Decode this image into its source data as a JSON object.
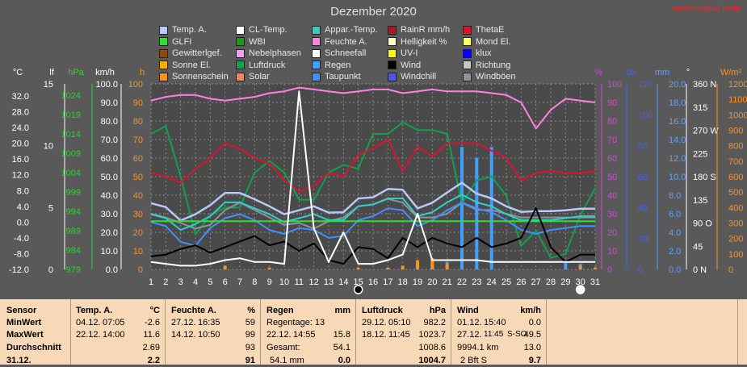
{
  "title": "Dezember 2020",
  "status": "Wetterstation Halle",
  "legend": [
    {
      "label": "Temp. A.",
      "color": "#b8c8f8"
    },
    {
      "label": "CL-Temp.",
      "color": "#ffffff"
    },
    {
      "label": "Appar.-Temp.",
      "color": "#30d0c8"
    },
    {
      "label": "RainR mm/h",
      "color": "#c01020"
    },
    {
      "label": "ThetaE",
      "color": "#e01030"
    },
    {
      "label": "GLFI",
      "color": "#30e030"
    },
    {
      "label": "WBI",
      "color": "#10a010"
    },
    {
      "label": "Feuchte A.",
      "color": "#ff80e0"
    },
    {
      "label": "Helligkeit %",
      "color": "#ffffc0"
    },
    {
      "label": "Mond El.",
      "color": "#ffff60"
    },
    {
      "label": "Gewitterlgef.",
      "color": "#8a4a10"
    },
    {
      "label": "Nebelphasen",
      "color": "#f0a0f0"
    },
    {
      "label": "Schneefall",
      "color": "#ffffff"
    },
    {
      "label": "UV-I",
      "color": "#ffff00"
    },
    {
      "label": "klux",
      "color": "#0000ff"
    },
    {
      "label": "Sonne El.",
      "color": "#f0b000"
    },
    {
      "label": "Luftdruck",
      "color": "#10a050"
    },
    {
      "label": "Regen",
      "color": "#40a0ff"
    },
    {
      "label": "Wind",
      "color": "#000000"
    },
    {
      "label": "Richtung",
      "color": "#c8c8c8"
    },
    {
      "label": "Sonnenschein",
      "color": "#ff9020"
    },
    {
      "label": "Solar",
      "color": "#ff8050"
    },
    {
      "label": "Taupunkt",
      "color": "#4090ff"
    },
    {
      "label": "Windchill",
      "color": "#5050ff"
    },
    {
      "label": "Windböen",
      "color": "#9090a0"
    }
  ],
  "chart_data": {
    "type": "line",
    "title": "Dezember 2020",
    "days": [
      1,
      2,
      3,
      4,
      5,
      6,
      7,
      8,
      9,
      10,
      11,
      12,
      13,
      14,
      15,
      16,
      17,
      18,
      19,
      20,
      21,
      22,
      23,
      24,
      25,
      26,
      27,
      28,
      29,
      30,
      31
    ],
    "axes": {
      "temp": {
        "unit": "°C",
        "ticks": [
          "32.0",
          "28.0",
          "24.0",
          "20.0",
          "16.0",
          "12.0",
          "8.0",
          "4.0",
          "0.0",
          "-4.0",
          "-8.0",
          "-12.0"
        ],
        "range": [
          -12,
          32
        ],
        "color": "#ffffff"
      },
      "index": {
        "unit": "lf",
        "ticks": [
          "15",
          "10",
          "5",
          "0"
        ],
        "range": [
          0,
          15
        ],
        "color": "#ffffff"
      },
      "pressure": {
        "unit": "hPa",
        "ticks": [
          "1024",
          "1019",
          "1014",
          "1009",
          "1004",
          "999",
          "994",
          "989",
          "984",
          "979"
        ],
        "range": [
          979,
          1024
        ],
        "color": "#30d030"
      },
      "wind": {
        "unit": "km/h",
        "ticks": [
          "100.0",
          "90.0",
          "80.0",
          "70.0",
          "60.0",
          "50.0",
          "40.0",
          "30.0",
          "20.0",
          "10.0",
          "0.0"
        ],
        "range": [
          0,
          100
        ],
        "color": "#ffffff"
      },
      "hours": {
        "unit": "h",
        "ticks": [
          "100",
          "90",
          "80",
          "70",
          "60",
          "50",
          "40",
          "30",
          "20",
          "10",
          "0"
        ],
        "range": [
          0,
          100
        ],
        "color": "#ff9020"
      },
      "humidity": {
        "unit": "%",
        "ticks": [
          "100",
          "90",
          "80",
          "70",
          "60",
          "50",
          "40",
          "30",
          "20",
          "10",
          "0"
        ],
        "range": [
          0,
          100
        ],
        "color": "#e040e0"
      },
      "cb": {
        "unit": "cb",
        "ticks": [
          "120",
          "100",
          "80",
          "60",
          "40",
          "20",
          "0"
        ],
        "range": [
          0,
          120
        ],
        "color": "#4060ff"
      },
      "rain": {
        "unit": "mm",
        "ticks": [
          "20.0",
          "18.0",
          "16.0",
          "14.0",
          "12.0",
          "10.0",
          "8.0",
          "6.0",
          "4.0",
          "2.0",
          "0.0"
        ],
        "range": [
          0,
          20
        ],
        "color": "#60a0ff"
      },
      "direction": {
        "unit": "°",
        "ticks": [
          "360 N",
          "315",
          "270 W",
          "225",
          "180 S",
          "135",
          "90 O",
          "45",
          "0 N"
        ],
        "range": [
          0,
          360
        ],
        "color": "#ffffff"
      },
      "solar": {
        "unit": "W/m²",
        "ticks": [
          "1200",
          "1100",
          "1000",
          "900",
          "800",
          "700",
          "600",
          "500",
          "400",
          "300",
          "200",
          "100",
          "0"
        ],
        "range": [
          0,
          1200
        ],
        "color": "#ff9020"
      }
    },
    "moon_phases": [
      {
        "day": 15,
        "phase": "new"
      },
      {
        "day": 30,
        "phase": "full"
      }
    ],
    "series": [
      {
        "name": "Feuchte A.",
        "color": "#ff80e0",
        "axis": "humidity",
        "values": [
          91,
          93,
          94,
          94,
          92,
          91,
          92,
          93,
          95,
          96,
          98,
          97,
          96,
          95,
          96,
          97,
          97,
          95,
          96,
          97,
          96,
          96,
          96,
          95,
          94,
          90,
          76,
          86,
          92,
          91,
          90
        ]
      },
      {
        "name": "Luftdruck",
        "color": "#10a050",
        "axis": "pressure",
        "values": [
          1014,
          1016,
          1003,
          988,
          993,
          995,
          995,
          1004,
          1007,
          1004,
          997,
          997,
          1004,
          1006,
          1005,
          1014,
          1014,
          1017,
          1015,
          1015,
          1014,
          996,
          1002,
          1003,
          998,
          985,
          989,
          982,
          983,
          993,
          1000
        ]
      },
      {
        "name": "ThetaE",
        "color": "#e01030",
        "axis": "hours",
        "values": [
          52,
          50,
          47,
          54,
          60,
          68,
          65,
          60,
          57,
          48,
          42,
          45,
          52,
          50,
          62,
          65,
          70,
          53,
          66,
          61,
          68,
          68,
          68,
          64,
          60,
          48,
          52,
          53,
          52,
          52,
          53
        ]
      },
      {
        "name": "Windböen",
        "color": "#9090a0",
        "axis": "wind",
        "values": [
          30,
          28,
          25,
          22,
          24,
          32,
          36,
          32,
          28,
          24,
          25,
          22,
          26,
          28,
          34,
          35,
          38,
          36,
          28,
          28,
          30,
          36,
          32,
          32,
          30,
          28,
          28,
          28,
          28,
          28,
          28
        ]
      },
      {
        "name": "Temp. A.",
        "color": "#b8c8f8",
        "axis": "temp",
        "values": [
          4.8,
          3.8,
          0.4,
          2.0,
          4.3,
          7.4,
          7.4,
          5.8,
          4.0,
          2.0,
          3.0,
          4.0,
          2.4,
          2.5,
          6.0,
          6.3,
          8.4,
          8.2,
          3.5,
          4.9,
          7.5,
          10.0,
          7.2,
          6.0,
          4.0,
          2.6,
          2.8,
          2.8,
          3.0,
          3.4,
          3.4
        ]
      },
      {
        "name": "Appar.-Temp.",
        "color": "#30d0c8",
        "axis": "temp",
        "values": [
          2.0,
          1.0,
          -2.0,
          -0.5,
          1.5,
          5.0,
          5.0,
          3.5,
          2.0,
          0.0,
          1.0,
          2.0,
          0.5,
          0.5,
          4.0,
          4.5,
          6.0,
          6.0,
          1.5,
          2.5,
          5.0,
          7.0,
          5.0,
          4.0,
          2.0,
          0.5,
          0.5,
          0.5,
          1.0,
          1.5,
          1.5
        ]
      },
      {
        "name": "Taupunkt",
        "color": "#4090ff",
        "axis": "temp",
        "values": [
          0.0,
          -1.0,
          -5.0,
          -6.0,
          -1.5,
          1.0,
          2.0,
          0.5,
          -2.0,
          -3.0,
          -1.5,
          -2.0,
          -4.0,
          -3.5,
          0.5,
          1.5,
          3.5,
          3.0,
          -1.0,
          0.5,
          3.0,
          5.0,
          3.5,
          2.5,
          0.5,
          -2.0,
          -3.0,
          -2.0,
          -1.5,
          -1.0,
          -1.0
        ]
      },
      {
        "name": "GLFI",
        "color": "#30e030",
        "axis": "hours",
        "values": [
          26,
          26,
          26,
          26,
          26,
          26,
          26,
          26,
          26,
          26,
          26,
          26,
          26,
          26,
          26,
          26,
          26,
          26,
          26,
          26,
          26,
          26,
          26,
          26,
          26,
          26,
          26,
          26,
          26,
          26,
          26
        ]
      },
      {
        "name": "Wind",
        "color": "#000000",
        "axis": "wind",
        "values": [
          7,
          8,
          11,
          13,
          9,
          12,
          15,
          18,
          13,
          15,
          10,
          14,
          5,
          3,
          12,
          11,
          6,
          17,
          12,
          17,
          14,
          12,
          17,
          12,
          14,
          17,
          33,
          12,
          4,
          8,
          8
        ]
      },
      {
        "name": "CL-Temp.",
        "color": "#ffffff",
        "axis": "wind",
        "values": [
          4,
          3,
          2,
          2,
          3,
          5,
          6,
          4,
          4,
          3,
          96,
          22,
          4,
          20,
          3,
          3,
          5,
          8,
          30,
          5,
          5,
          5,
          5,
          4,
          4,
          4,
          4,
          4,
          4,
          4,
          4
        ]
      },
      {
        "name": "Regen",
        "color": "#40a0ff",
        "axis": "rain",
        "values": [
          0,
          0,
          0,
          0,
          0,
          0,
          0,
          0,
          0,
          0,
          0,
          0,
          0,
          0,
          0,
          0,
          0,
          0,
          0,
          0.5,
          0.8,
          13.2,
          12.0,
          13.2,
          0,
          0,
          0,
          0,
          0.8,
          0.6,
          0.1
        ]
      },
      {
        "name": "Sonnenschein",
        "color": "#ff9020",
        "axis": "hours",
        "values": [
          0,
          0,
          0,
          0,
          0,
          2,
          0,
          0,
          1,
          0,
          0,
          0,
          0,
          0,
          1,
          0,
          1,
          2,
          5,
          6,
          3,
          0,
          0,
          0,
          0,
          0,
          0,
          0,
          0,
          2,
          1
        ]
      }
    ]
  },
  "panel": {
    "labels": {
      "title": "Sensor",
      "min": "MinWert",
      "max": "MaxWert",
      "avg": "Durchschnitt",
      "date": "31.12."
    },
    "temp": {
      "title": "Temp. A.",
      "unit": "°C",
      "min_date": "04.12.",
      "min_time": "07:05",
      "min_val": "-2.6",
      "max_date": "22.12.",
      "max_time": "14:00",
      "max_val": "11.6",
      "avg": "2.69",
      "today": "2.2"
    },
    "hum": {
      "title": "Feuchte A.",
      "unit": "%",
      "min_date": "27.12.",
      "min_time": "16:35",
      "min_val": "59",
      "max_date": "14.12.",
      "max_time": "10:50",
      "max_val": "99",
      "avg": "93",
      "today": "91"
    },
    "rain": {
      "title": "Regen",
      "unit": "mm",
      "min_label": "Regentage: 13",
      "max_date": "22.12.",
      "max_time": "14:55",
      "max_val": "15.8",
      "avg_label": "Gesamt:",
      "avg": "54.1",
      "today_label": "54.1 mm",
      "today": "0.0"
    },
    "press": {
      "title": "Luftdruck",
      "unit": "hPa",
      "min_date": "29.12.",
      "min_time": "05:10",
      "min_val": "982.2",
      "max_date": "18.12.",
      "max_time": "11:45",
      "max_val": "1023.7",
      "avg": "1008.6",
      "today": "1004.7"
    },
    "wind": {
      "title": "Wind",
      "unit": "km/h",
      "min_date": "01.12.",
      "min_time": "15:40",
      "min_val": "0.0",
      "max_date": "27.12.",
      "max_time": "11:45",
      "max_dir": "S-SO",
      "max_val": "49.5",
      "avg_label": "9994.1 km",
      "avg": "13.0",
      "today_label": "2 Bft S",
      "today": "9.7"
    }
  }
}
